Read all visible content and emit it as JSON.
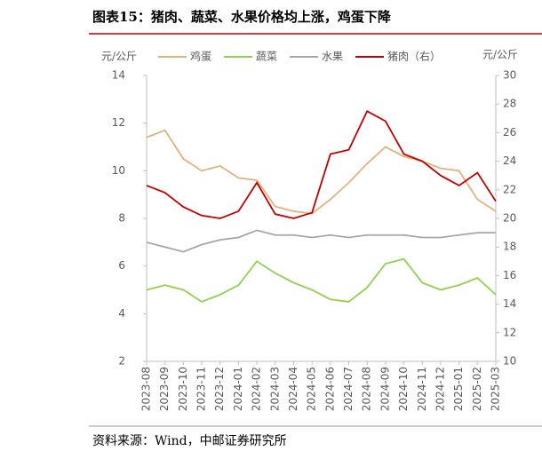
{
  "header": {
    "title": "图表15：猪肉、蔬菜、水果价格均上涨，鸡蛋下降"
  },
  "chart_data": {
    "type": "line",
    "ylabel": "元/公斤",
    "y2label": "元/公斤",
    "categories": [
      "2023-08",
      "2023-09",
      "2023-10",
      "2023-11",
      "2023-12",
      "2024-01",
      "2024-02",
      "2024-03",
      "2024-04",
      "2024-05",
      "2024-06",
      "2024-07",
      "2024-08",
      "2024-09",
      "2024-10",
      "2024-11",
      "2024-12",
      "2025-01",
      "2025-02",
      "2025-03"
    ],
    "series": [
      {
        "name": "鸡蛋",
        "color": "#e2b27c",
        "values": [
          11.4,
          11.7,
          10.5,
          10.0,
          10.2,
          9.7,
          9.6,
          8.5,
          8.3,
          8.2,
          8.8,
          9.5,
          10.3,
          11.0,
          10.6,
          10.4,
          10.1,
          10.0,
          8.8,
          8.3
        ]
      },
      {
        "name": "蔬菜",
        "color": "#8fd14f",
        "values": [
          5.0,
          5.2,
          5.0,
          4.5,
          4.8,
          5.2,
          6.2,
          5.7,
          5.3,
          5.0,
          4.6,
          4.5,
          5.1,
          6.1,
          6.3,
          5.3,
          5.0,
          5.2,
          5.5,
          4.8
        ]
      },
      {
        "name": "水果",
        "color": "#a6a6a6",
        "values": [
          7.0,
          6.8,
          6.6,
          6.9,
          7.1,
          7.2,
          7.5,
          7.3,
          7.3,
          7.2,
          7.3,
          7.2,
          7.3,
          7.3,
          7.3,
          7.2,
          7.2,
          7.3,
          7.4,
          7.4
        ]
      },
      {
        "name": "猪肉（右）",
        "color": "#c00000",
        "axis": "y2",
        "values": [
          22.3,
          21.8,
          20.8,
          20.2,
          20.0,
          20.5,
          22.5,
          20.3,
          20.0,
          20.4,
          24.5,
          24.8,
          27.5,
          26.8,
          24.5,
          24.0,
          23.0,
          22.3,
          23.2,
          21.2
        ]
      }
    ],
    "ylim": [
      2,
      14
    ],
    "yticks": [
      2,
      4,
      6,
      8,
      10,
      12,
      14
    ],
    "y2lim": [
      10,
      30
    ],
    "y2ticks": [
      10,
      12,
      14,
      16,
      18,
      20,
      22,
      24,
      26,
      28,
      30
    ]
  },
  "footer": {
    "source": "资料来源：Wind，中邮证券研究所"
  }
}
